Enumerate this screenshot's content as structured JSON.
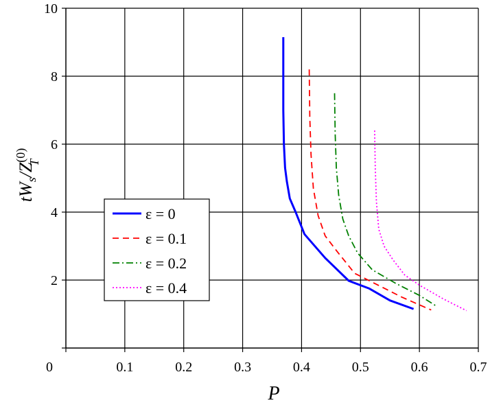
{
  "chart_data": {
    "type": "line",
    "title": "",
    "xlabel": "P",
    "ylabel": "tW_s/Z_T^(0)",
    "xlim": [
      0,
      0.7
    ],
    "ylim": [
      0,
      10
    ],
    "xticks": [
      0,
      0.1,
      0.2,
      0.3,
      0.4,
      0.5,
      0.6,
      0.7
    ],
    "yticks": [
      2,
      4,
      6,
      8,
      10
    ],
    "xtick_labels": [
      "0",
      "0.1",
      "0.2",
      "0.3",
      "0.4",
      "0.5",
      "0.6",
      "0.7"
    ],
    "ytick_labels": [
      "2",
      "4",
      "6",
      "8",
      "10"
    ],
    "grid": true,
    "legend_position": "center-left",
    "series": [
      {
        "name": "ε = 0",
        "color": "#0000ff",
        "style": "solid",
        "x": [
          0.369,
          0.369,
          0.37,
          0.372,
          0.375,
          0.38,
          0.39,
          0.405,
          0.44,
          0.48,
          0.515,
          0.55,
          0.59
        ],
        "y": [
          9.15,
          7.0,
          6.0,
          5.3,
          4.9,
          4.4,
          4.0,
          3.35,
          2.65,
          1.98,
          1.75,
          1.4,
          1.15
        ]
      },
      {
        "name": "ε = 0.1",
        "color": "#ff0000",
        "style": "dashed",
        "x": [
          0.413,
          0.414,
          0.416,
          0.42,
          0.428,
          0.44,
          0.46,
          0.49,
          0.53,
          0.57,
          0.62
        ],
        "y": [
          8.2,
          6.8,
          5.7,
          4.7,
          3.9,
          3.3,
          2.85,
          2.2,
          1.85,
          1.5,
          1.12
        ]
      },
      {
        "name": "ε = 0.2",
        "color": "#008000",
        "style": "dashdot",
        "x": [
          0.456,
          0.457,
          0.459,
          0.463,
          0.47,
          0.48,
          0.495,
          0.52,
          0.56,
          0.6,
          0.63
        ],
        "y": [
          7.5,
          6.3,
          5.3,
          4.5,
          3.8,
          3.3,
          2.8,
          2.3,
          1.9,
          1.55,
          1.22
        ]
      },
      {
        "name": "ε = 0.4",
        "color": "#ff00ff",
        "style": "dotted",
        "x": [
          0.524,
          0.525,
          0.527,
          0.531,
          0.54,
          0.555,
          0.575,
          0.6,
          0.64,
          0.68
        ],
        "y": [
          6.4,
          5.3,
          4.3,
          3.5,
          3.0,
          2.6,
          2.15,
          1.85,
          1.45,
          1.1
        ]
      }
    ]
  }
}
